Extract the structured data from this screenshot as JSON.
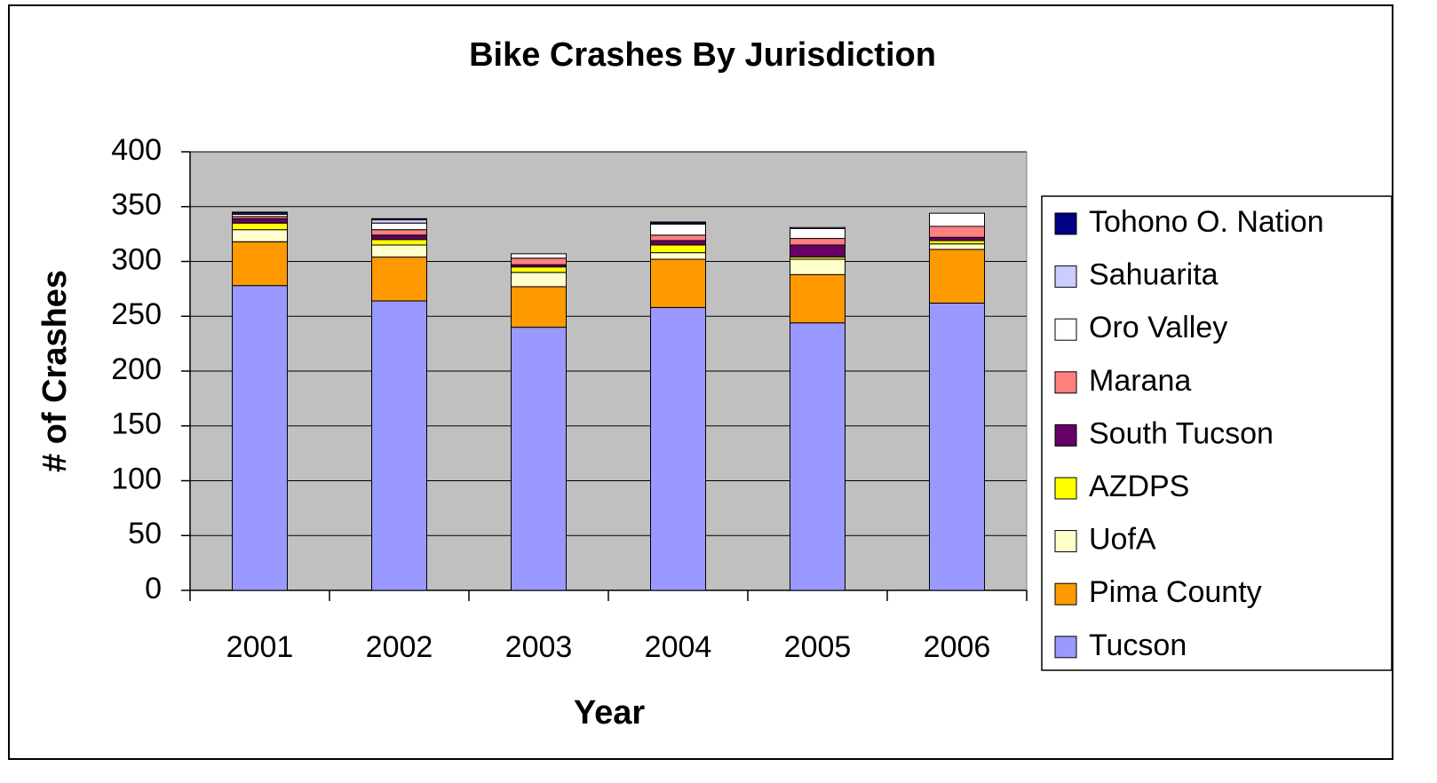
{
  "chart_data": {
    "type": "stacked_bar",
    "title": "Bike Crashes By Jurisdiction",
    "x_label": "Year",
    "y_label": "# of Crashes",
    "categories": [
      "2001",
      "2002",
      "2003",
      "2004",
      "2005",
      "2006"
    ],
    "series": [
      {
        "name": "Tucson",
        "color": "#9999ff",
        "values": [
          278,
          264,
          240,
          258,
          244,
          262
        ]
      },
      {
        "name": "Pima County",
        "color": "#ff9900",
        "values": [
          40,
          40,
          37,
          44,
          44,
          49
        ]
      },
      {
        "name": "UofA",
        "color": "#ffffcc",
        "values": [
          11,
          11,
          13,
          6,
          14,
          5
        ]
      },
      {
        "name": "AZDPS",
        "color": "#ffff00",
        "values": [
          6,
          5,
          5,
          7,
          2,
          3
        ]
      },
      {
        "name": "South Tucson",
        "color": "#660066",
        "values": [
          4,
          4,
          2,
          4,
          11,
          3
        ]
      },
      {
        "name": "Marana",
        "color": "#ff8080",
        "values": [
          2,
          5,
          6,
          5,
          6,
          10
        ]
      },
      {
        "name": "Oro Valley",
        "color": "#ffffff",
        "values": [
          2,
          6,
          4,
          10,
          9,
          12
        ]
      },
      {
        "name": "Sahuarita",
        "color": "#ccccff",
        "values": [
          1,
          3,
          0,
          1,
          1,
          0
        ]
      },
      {
        "name": "Tohono O. Nation",
        "color": "#000080",
        "values": [
          1,
          1,
          0,
          1,
          0,
          0
        ]
      }
    ],
    "ylim": [
      0,
      400
    ],
    "yticks": [
      0,
      50,
      100,
      150,
      200,
      250,
      300,
      350,
      400
    ],
    "grid": true,
    "plot_background": "#c0c0c0",
    "legend": "right"
  }
}
